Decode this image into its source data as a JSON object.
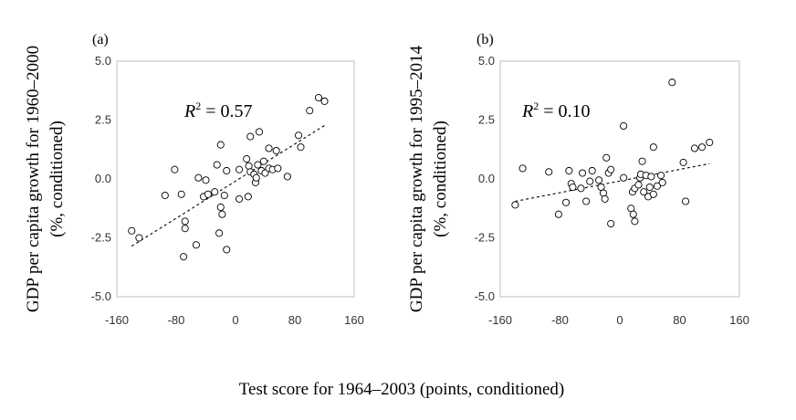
{
  "figure": {
    "shared_xlabel": "Test score for 1964–2003  (points, conditioned)"
  },
  "chart_data": [
    {
      "type": "scatter",
      "panel_label": "(a)",
      "ylabel_line1": "GDP per capita growth for 1960–2000",
      "ylabel_line2": "(%, conditioned)",
      "r2_symbol": "R",
      "r2_sup": "2",
      "r2_value": " = 0.57",
      "xlim": [
        -160,
        160
      ],
      "ylim": [
        -5.0,
        5.0
      ],
      "xticks": [
        -160,
        -80,
        0,
        80,
        160
      ],
      "xtick_labels": [
        "-160",
        "-80",
        "0",
        "80",
        "160"
      ],
      "yticks": [
        5.0,
        2.5,
        0.0,
        -2.5,
        -5.0
      ],
      "ytick_labels": [
        "5.0",
        "2.5",
        "0.0",
        "-2.5",
        "-5.0"
      ],
      "trendline": {
        "x": [
          -140,
          120
        ],
        "y": [
          -2.85,
          2.27
        ]
      },
      "points": [
        {
          "x": -140,
          "y": -2.2
        },
        {
          "x": -130,
          "y": -2.5
        },
        {
          "x": -95,
          "y": -0.7
        },
        {
          "x": -82,
          "y": 0.4
        },
        {
          "x": -73,
          "y": -0.65
        },
        {
          "x": -68,
          "y": -1.8
        },
        {
          "x": -68,
          "y": -2.1
        },
        {
          "x": -70,
          "y": -3.3
        },
        {
          "x": -53,
          "y": -2.8
        },
        {
          "x": -50,
          "y": 0.05
        },
        {
          "x": -43,
          "y": -0.75
        },
        {
          "x": -40,
          "y": -0.05
        },
        {
          "x": -37,
          "y": -0.65
        },
        {
          "x": -28,
          "y": -0.55
        },
        {
          "x": -25,
          "y": 0.6
        },
        {
          "x": -22,
          "y": -2.3
        },
        {
          "x": -20,
          "y": -1.2
        },
        {
          "x": -20,
          "y": 1.45
        },
        {
          "x": -18,
          "y": -1.5
        },
        {
          "x": -15,
          "y": -0.7
        },
        {
          "x": -12,
          "y": -3.0
        },
        {
          "x": -12,
          "y": 0.35
        },
        {
          "x": 5,
          "y": 0.4
        },
        {
          "x": 5,
          "y": -0.85
        },
        {
          "x": 15,
          "y": 0.85
        },
        {
          "x": 17,
          "y": -0.75
        },
        {
          "x": 18,
          "y": 0.55
        },
        {
          "x": 20,
          "y": 0.3
        },
        {
          "x": 20,
          "y": 1.8
        },
        {
          "x": 25,
          "y": 0.2
        },
        {
          "x": 27,
          "y": -0.15
        },
        {
          "x": 28,
          "y": 0.05
        },
        {
          "x": 30,
          "y": 0.6
        },
        {
          "x": 32,
          "y": 2.0
        },
        {
          "x": 35,
          "y": 0.35
        },
        {
          "x": 38,
          "y": 0.75
        },
        {
          "x": 40,
          "y": 0.25
        },
        {
          "x": 45,
          "y": 0.45
        },
        {
          "x": 45,
          "y": 1.3
        },
        {
          "x": 50,
          "y": 0.4
        },
        {
          "x": 55,
          "y": 1.2
        },
        {
          "x": 57,
          "y": 0.45
        },
        {
          "x": 70,
          "y": 0.1
        },
        {
          "x": 85,
          "y": 1.85
        },
        {
          "x": 88,
          "y": 1.35
        },
        {
          "x": 100,
          "y": 2.9
        },
        {
          "x": 112,
          "y": 3.45
        },
        {
          "x": 120,
          "y": 3.3
        }
      ]
    },
    {
      "type": "scatter",
      "panel_label": "(b)",
      "ylabel_line1": "GDP per capita growth for 1995–2014",
      "ylabel_line2": "(%, conditioned)",
      "r2_symbol": "R",
      "r2_sup": "2",
      "r2_value": " = 0.10",
      "xlim": [
        -160,
        160
      ],
      "ylim": [
        -5.0,
        5.0
      ],
      "xticks": [
        -160,
        -80,
        0,
        80,
        160
      ],
      "xtick_labels": [
        "-160",
        "-80",
        "0",
        "80",
        "160"
      ],
      "yticks": [
        5.0,
        2.5,
        0.0,
        -2.5,
        -5.0
      ],
      "ytick_labels": [
        "5.0",
        "2.5",
        "0.0",
        "-2.5",
        "-5.0"
      ],
      "trendline": {
        "x": [
          -140,
          120
        ],
        "y": [
          -0.95,
          0.65
        ]
      },
      "points": [
        {
          "x": -140,
          "y": -1.1
        },
        {
          "x": -130,
          "y": 0.45
        },
        {
          "x": -95,
          "y": 0.3
        },
        {
          "x": -82,
          "y": -1.5
        },
        {
          "x": -72,
          "y": -1.0
        },
        {
          "x": -68,
          "y": 0.35
        },
        {
          "x": -65,
          "y": -0.2
        },
        {
          "x": -63,
          "y": -0.35
        },
        {
          "x": -52,
          "y": -0.4
        },
        {
          "x": -50,
          "y": 0.25
        },
        {
          "x": -45,
          "y": -0.95
        },
        {
          "x": -40,
          "y": -0.1
        },
        {
          "x": -37,
          "y": 0.35
        },
        {
          "x": -28,
          "y": -0.05
        },
        {
          "x": -25,
          "y": -0.35
        },
        {
          "x": -22,
          "y": -0.6
        },
        {
          "x": -20,
          "y": -0.85
        },
        {
          "x": -18,
          "y": 0.9
        },
        {
          "x": -15,
          "y": 0.25
        },
        {
          "x": -12,
          "y": 0.4
        },
        {
          "x": -12,
          "y": -1.9
        },
        {
          "x": 5,
          "y": 0.05
        },
        {
          "x": 5,
          "y": 2.25
        },
        {
          "x": 15,
          "y": -1.25
        },
        {
          "x": 17,
          "y": -0.55
        },
        {
          "x": 18,
          "y": -1.5
        },
        {
          "x": 20,
          "y": -1.8
        },
        {
          "x": 20,
          "y": -0.4
        },
        {
          "x": 25,
          "y": -0.25
        },
        {
          "x": 27,
          "y": 0.05
        },
        {
          "x": 28,
          "y": 0.2
        },
        {
          "x": 30,
          "y": 0.75
        },
        {
          "x": 32,
          "y": -0.55
        },
        {
          "x": 35,
          "y": 0.15
        },
        {
          "x": 38,
          "y": -0.75
        },
        {
          "x": 40,
          "y": -0.35
        },
        {
          "x": 42,
          "y": 0.1
        },
        {
          "x": 45,
          "y": -0.65
        },
        {
          "x": 45,
          "y": 1.35
        },
        {
          "x": 50,
          "y": -0.3
        },
        {
          "x": 55,
          "y": 0.15
        },
        {
          "x": 57,
          "y": -0.15
        },
        {
          "x": 70,
          "y": 4.1
        },
        {
          "x": 85,
          "y": 0.7
        },
        {
          "x": 88,
          "y": -0.95
        },
        {
          "x": 100,
          "y": 1.3
        },
        {
          "x": 110,
          "y": 1.35
        },
        {
          "x": 120,
          "y": 1.55
        }
      ]
    }
  ]
}
